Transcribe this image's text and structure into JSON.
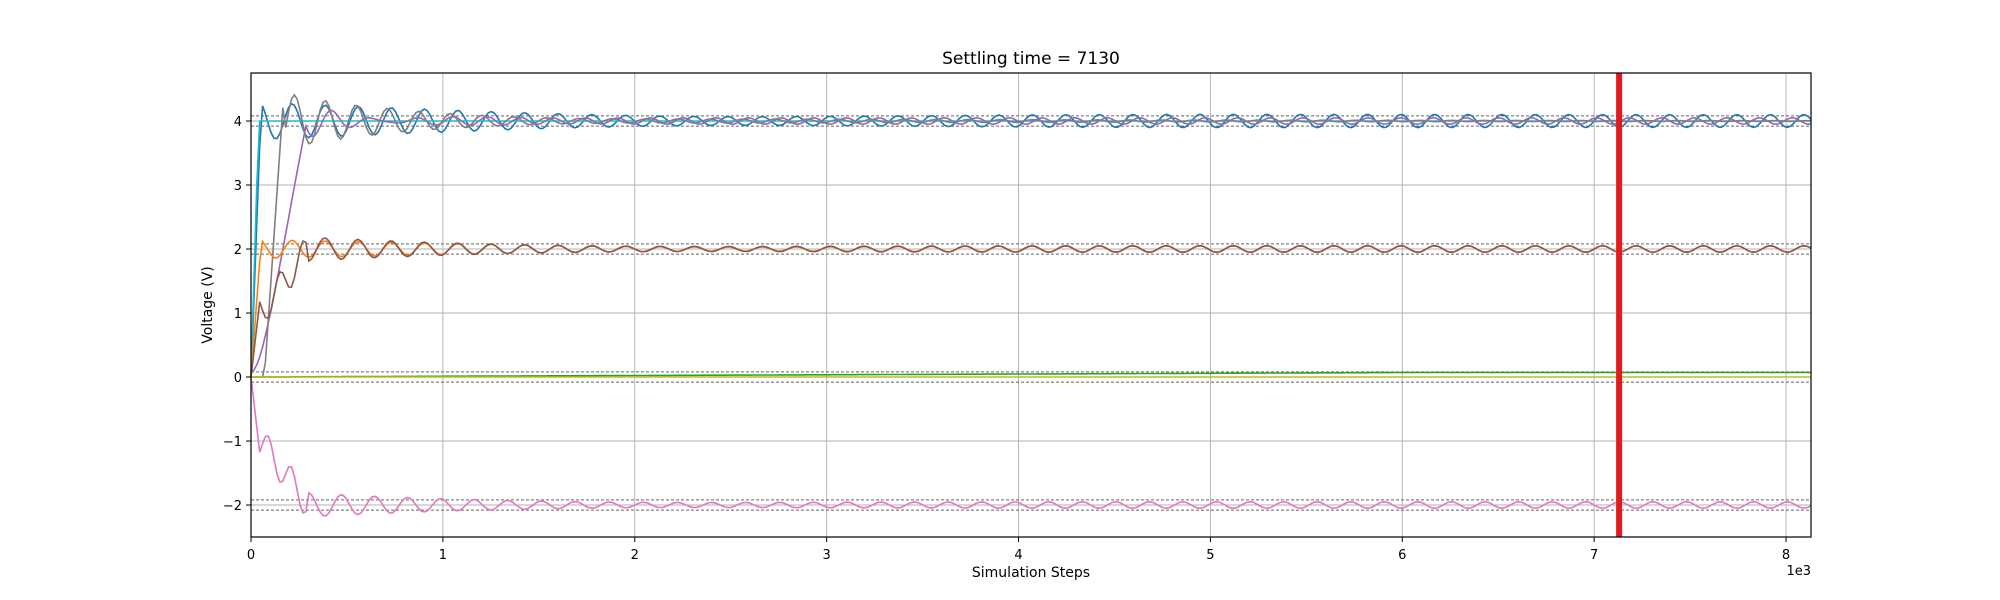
{
  "chart_data": {
    "type": "line",
    "title": "Settling time = 7130",
    "xlabel": "Simulation Steps",
    "ylabel": "Voltage (V)",
    "x_offset_label": "1e3",
    "xlim": [
      0,
      8.13
    ],
    "ylim": [
      -2.5,
      4.75
    ],
    "x_ticks": [
      0,
      1,
      2,
      3,
      4,
      5,
      6,
      7,
      8
    ],
    "y_ticks": [
      -2,
      -1,
      0,
      1,
      2,
      3,
      4
    ],
    "grid": true,
    "settling_marker": {
      "x": 7.13,
      "color": "#e31a1c"
    },
    "tolerance_bands": [
      {
        "center": 4,
        "band": [
          3.92,
          4.08
        ]
      },
      {
        "center": 2,
        "band": [
          1.92,
          2.08
        ]
      },
      {
        "center": 0,
        "band": [
          -0.08,
          0.08
        ]
      },
      {
        "center": -2,
        "band": [
          -2.08,
          -1.92
        ]
      }
    ],
    "series": [
      {
        "color": "#1f77b4",
        "target": 4,
        "kind": "osc_step"
      },
      {
        "color": "#17becf",
        "target": 4,
        "kind": "fast_step"
      },
      {
        "color": "#9467bd",
        "target": 4,
        "kind": "rise"
      },
      {
        "color": "#7f7f7f",
        "target": 4,
        "kind": "delayed_overshoot"
      },
      {
        "color": "#ff7f0e",
        "target": 2,
        "kind": "osc_step"
      },
      {
        "color": "#8c564b",
        "target": 2,
        "kind": "overshoot"
      },
      {
        "color": "#2ca02c",
        "target": 0.07,
        "kind": "drift"
      },
      {
        "color": "#bcbd22",
        "target": 0,
        "kind": "flat"
      },
      {
        "color": "#e377c2",
        "target": -2,
        "kind": "overshoot"
      }
    ]
  }
}
